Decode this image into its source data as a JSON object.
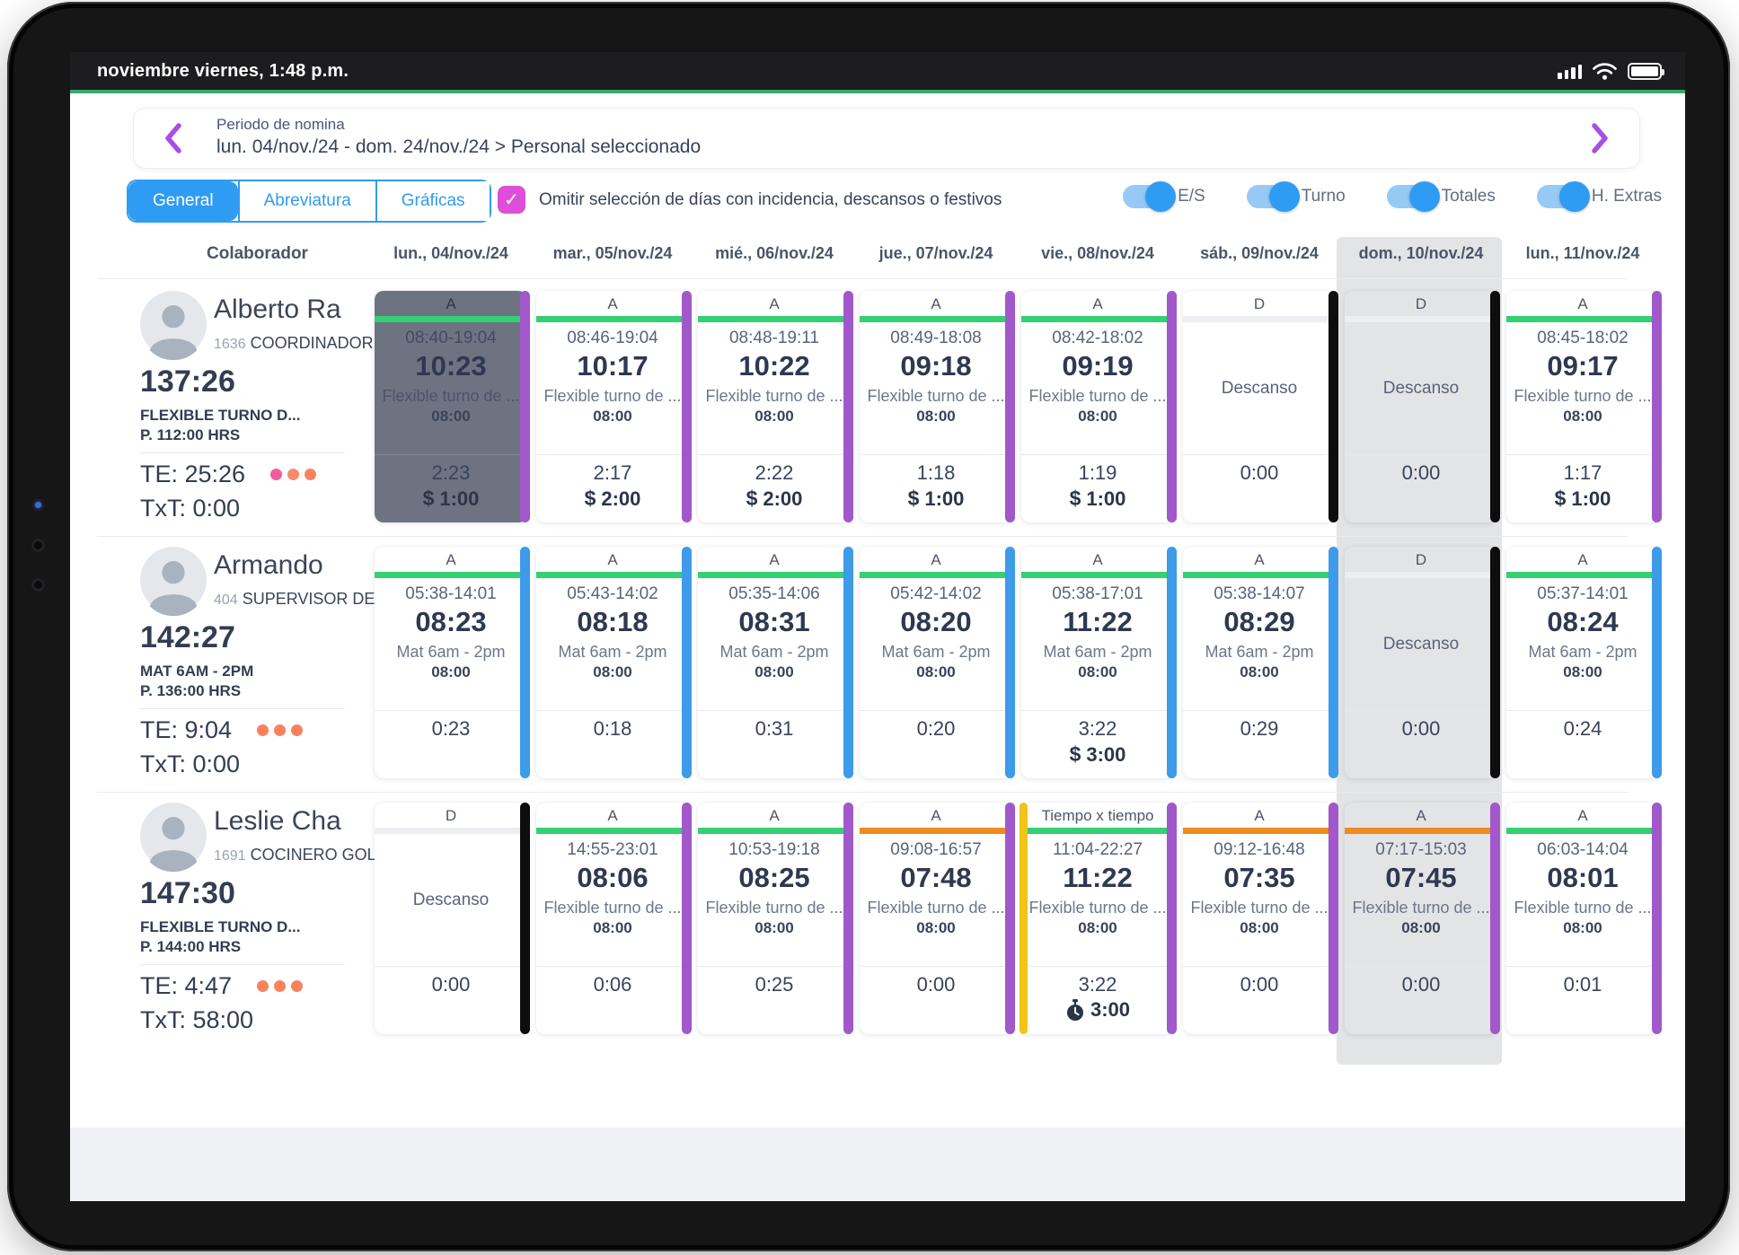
{
  "status_bar": {
    "datetime": "noviembre viernes, 1:48 p.m."
  },
  "header": {
    "label": "Periodo de nomina",
    "range": "lun. 04/nov./24 - dom. 24/nov./24 > Personal seleccionado"
  },
  "tabs": [
    {
      "label": "General",
      "active": true
    },
    {
      "label": "Abreviatura",
      "active": false
    },
    {
      "label": "Gráficas",
      "active": false
    }
  ],
  "filter_checkbox": {
    "checked": true,
    "label": "Omitir selección de días con incidencia, descansos o festivos"
  },
  "toggles": [
    {
      "label": "E/S",
      "on": true
    },
    {
      "label": "Turno",
      "on": true
    },
    {
      "label": "Totales",
      "on": true
    },
    {
      "label": "H. Extras",
      "on": true
    }
  ],
  "colors": {
    "green": "#34d073",
    "orange": "#ef8b1f",
    "purple": "#a158ca",
    "blue": "#3d9be9",
    "black": "#0d0d0d",
    "yellow": "#f2c318",
    "rest_bar": "#eceef1"
  },
  "table": {
    "collaborator_header": "Colaborador",
    "day_headers": [
      "lun., 04/nov./24",
      "mar., 05/nov./24",
      "mié., 06/nov./24",
      "jue., 07/nov./24",
      "vie., 08/nov./24",
      "sáb., 09/nov./24",
      "dom., 10/nov./24",
      "lun., 11/nov./24"
    ],
    "highlighted_day_index": 6,
    "rows": [
      {
        "name": "Alberto Ra",
        "employee_number": "1636",
        "position": "COORDINADOR",
        "total_hours": "137:26",
        "shift": "FLEXIBLE TURNO D...",
        "planned": "P. 112:00 HRS",
        "te": "TE: 25:26",
        "txt": "TxT: 0:00",
        "dot_colors": [
          "#f25c9b",
          "#f98a6a",
          "#f9825c"
        ],
        "days": [
          {
            "type": "A",
            "header": "A",
            "selected": true,
            "top": "green",
            "side": "purple",
            "range": "08:40-19:04",
            "worked": "10:23",
            "shift": "Flexible turno de ...",
            "scheduled": "08:00",
            "extra": "2:23",
            "bonus": "1:00",
            "bonus_icon": "dollar"
          },
          {
            "type": "A",
            "header": "A",
            "top": "green",
            "side": "purple",
            "range": "08:46-19:04",
            "worked": "10:17",
            "shift": "Flexible turno de ...",
            "scheduled": "08:00",
            "extra": "2:17",
            "bonus": "2:00",
            "bonus_icon": "dollar"
          },
          {
            "type": "A",
            "header": "A",
            "top": "green",
            "side": "purple",
            "range": "08:48-19:11",
            "worked": "10:22",
            "shift": "Flexible turno de ...",
            "scheduled": "08:00",
            "extra": "2:22",
            "bonus": "2:00",
            "bonus_icon": "dollar"
          },
          {
            "type": "A",
            "header": "A",
            "top": "green",
            "side": "purple",
            "range": "08:49-18:08",
            "worked": "09:18",
            "shift": "Flexible turno de ...",
            "scheduled": "08:00",
            "extra": "1:18",
            "bonus": "1:00",
            "bonus_icon": "dollar"
          },
          {
            "type": "A",
            "header": "A",
            "top": "green",
            "side": "purple",
            "range": "08:42-18:02",
            "worked": "09:19",
            "shift": "Flexible turno de ...",
            "scheduled": "08:00",
            "extra": "1:19",
            "bonus": "1:00",
            "bonus_icon": "dollar"
          },
          {
            "type": "D",
            "header": "D",
            "side": "black",
            "rest_label": "Descanso",
            "extra": "0:00"
          },
          {
            "type": "D",
            "header": "D",
            "side": "black",
            "highlight": true,
            "rest_label": "Descanso",
            "extra": "0:00"
          },
          {
            "type": "A",
            "header": "A",
            "top": "green",
            "side": "purple",
            "range": "08:45-18:02",
            "worked": "09:17",
            "shift": "Flexible turno de ...",
            "scheduled": "08:00",
            "extra": "1:17",
            "bonus": "1:00",
            "bonus_icon": "dollar"
          }
        ]
      },
      {
        "name": "Armando",
        "employee_number": "404",
        "position": "SUPERVISOR DE",
        "total_hours": "142:27",
        "shift": "MAT 6AM - 2PM",
        "planned": "P. 136:00 HRS",
        "te": "TE: 9:04",
        "txt": "TxT: 0:00",
        "dot_colors": [
          "#f9825c",
          "#f9825c",
          "#f9825c"
        ],
        "days": [
          {
            "type": "A",
            "header": "A",
            "top": "green",
            "side": "blue",
            "range": "05:38-14:01",
            "worked": "08:23",
            "shift": "Mat 6am - 2pm",
            "scheduled": "08:00",
            "extra": "0:23"
          },
          {
            "type": "A",
            "header": "A",
            "top": "green",
            "side": "blue",
            "range": "05:43-14:02",
            "worked": "08:18",
            "shift": "Mat 6am - 2pm",
            "scheduled": "08:00",
            "extra": "0:18"
          },
          {
            "type": "A",
            "header": "A",
            "top": "green",
            "side": "blue",
            "range": "05:35-14:06",
            "worked": "08:31",
            "shift": "Mat 6am - 2pm",
            "scheduled": "08:00",
            "extra": "0:31"
          },
          {
            "type": "A",
            "header": "A",
            "top": "green",
            "side": "blue",
            "range": "05:42-14:02",
            "worked": "08:20",
            "shift": "Mat 6am - 2pm",
            "scheduled": "08:00",
            "extra": "0:20"
          },
          {
            "type": "A",
            "header": "A",
            "top": "green",
            "side": "blue",
            "range": "05:38-17:01",
            "worked": "11:22",
            "shift": "Mat 6am - 2pm",
            "scheduled": "08:00",
            "extra": "3:22",
            "bonus": "3:00",
            "bonus_icon": "dollar"
          },
          {
            "type": "A",
            "header": "A",
            "top": "green",
            "side": "blue",
            "range": "05:38-14:07",
            "worked": "08:29",
            "shift": "Mat 6am - 2pm",
            "scheduled": "08:00",
            "extra": "0:29"
          },
          {
            "type": "D",
            "header": "D",
            "side": "black",
            "highlight": true,
            "rest_label": "Descanso",
            "extra": "0:00"
          },
          {
            "type": "A",
            "header": "A",
            "top": "green",
            "side": "blue",
            "range": "05:37-14:01",
            "worked": "08:24",
            "shift": "Mat 6am - 2pm",
            "scheduled": "08:00",
            "extra": "0:24"
          }
        ]
      },
      {
        "name": "Leslie Cha",
        "employee_number": "1691",
        "position": "COCINERO GOL",
        "total_hours": "147:30",
        "shift": "FLEXIBLE TURNO D...",
        "planned": "P. 144:00 HRS",
        "te": "TE: 4:47",
        "txt": "TxT: 58:00",
        "dot_colors": [
          "#f9825c",
          "#f9825c",
          "#f9825c"
        ],
        "days": [
          {
            "type": "D",
            "header": "D",
            "side": "black",
            "rest_label": "Descanso",
            "extra": "0:00"
          },
          {
            "type": "A",
            "header": "A",
            "top": "green",
            "side": "purple",
            "range": "14:55-23:01",
            "worked": "08:06",
            "shift": "Flexible turno de ...",
            "scheduled": "08:00",
            "extra": "0:06"
          },
          {
            "type": "A",
            "header": "A",
            "top": "green",
            "side": "purple",
            "range": "10:53-19:18",
            "worked": "08:25",
            "shift": "Flexible turno de ...",
            "scheduled": "08:00",
            "extra": "0:25"
          },
          {
            "type": "A",
            "header": "A",
            "top": "orange",
            "side": "purple",
            "range": "09:08-16:57",
            "worked": "07:48",
            "shift": "Flexible turno de ...",
            "scheduled": "08:00",
            "extra": "0:00"
          },
          {
            "type": "TXT",
            "header": "Tiempo x tiempo",
            "top": "green",
            "side": "purple",
            "left_bar": "yellow",
            "range": "11:04-22:27",
            "worked": "11:22",
            "shift": "Flexible turno de ...",
            "scheduled": "08:00",
            "extra": "3:22",
            "bonus": "3:00",
            "bonus_icon": "stopwatch"
          },
          {
            "type": "A",
            "header": "A",
            "top": "orange",
            "side": "purple",
            "range": "09:12-16:48",
            "worked": "07:35",
            "shift": "Flexible turno de ...",
            "scheduled": "08:00",
            "extra": "0:00"
          },
          {
            "type": "A",
            "header": "A",
            "top": "orange",
            "side": "purple",
            "highlight": true,
            "range": "07:17-15:03",
            "worked": "07:45",
            "shift": "Flexible turno de ...",
            "scheduled": "08:00",
            "extra": "0:00"
          },
          {
            "type": "A",
            "header": "A",
            "top": "green",
            "side": "purple",
            "range": "06:03-14:04",
            "worked": "08:01",
            "shift": "Flexible turno de ...",
            "scheduled": "08:00",
            "extra": "0:01"
          }
        ]
      }
    ]
  }
}
